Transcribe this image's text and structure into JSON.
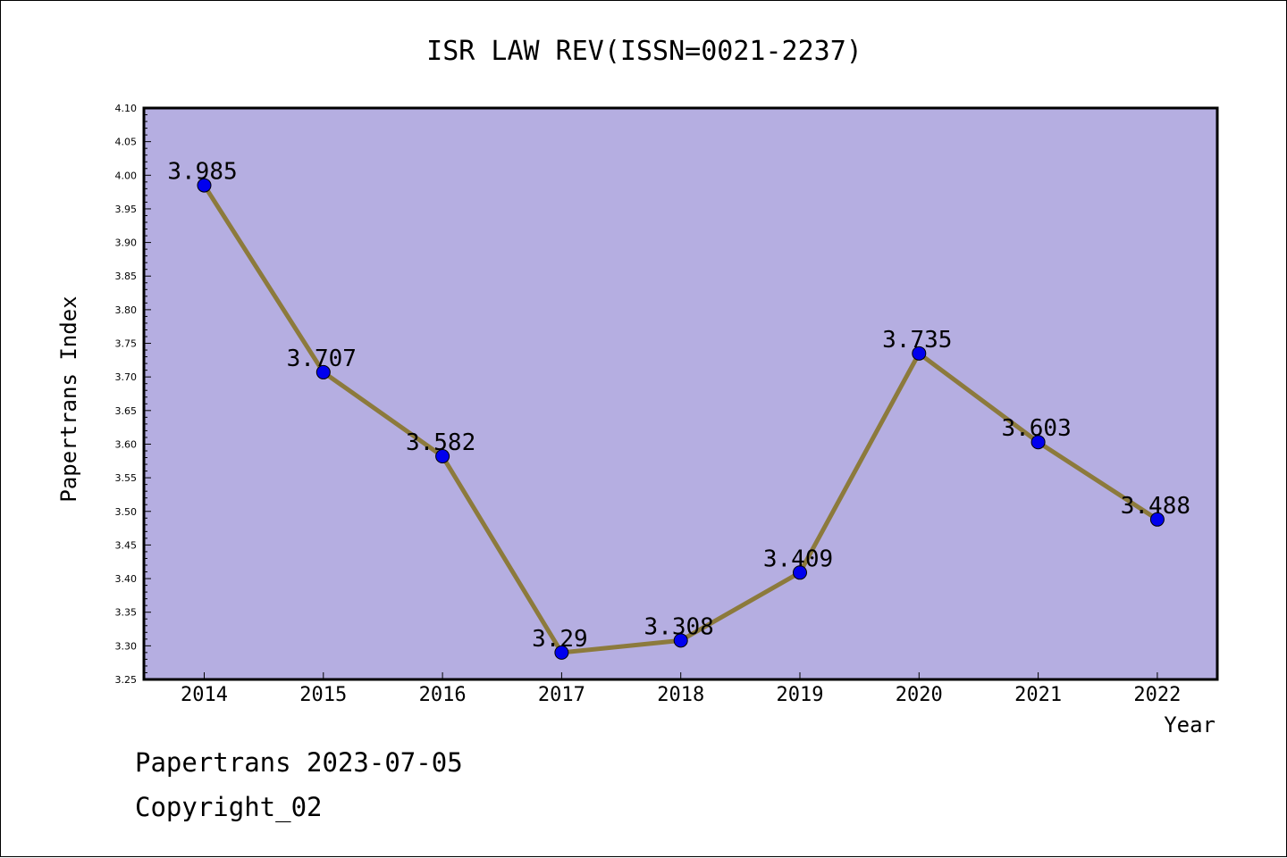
{
  "chart_data": {
    "type": "line",
    "title": "ISR LAW REV(ISSN=0021-2237)",
    "xlabel": "Year",
    "ylabel": "Papertrans Index",
    "categories": [
      "2014",
      "2015",
      "2016",
      "2017",
      "2018",
      "2019",
      "2020",
      "2021",
      "2022"
    ],
    "series": [
      {
        "values": [
          3.985,
          3.707,
          3.582,
          3.29,
          3.308,
          3.409,
          3.735,
          3.603,
          3.488
        ],
        "labels": [
          "3.985",
          "3.707",
          "3.582",
          "3.29",
          "3.308",
          "3.409",
          "3.735",
          "3.603",
          "3.488"
        ]
      }
    ],
    "ylim": [
      3.25,
      4.1
    ],
    "yticks": [
      "3.25",
      "3.30",
      "3.35",
      "3.40",
      "3.45",
      "3.50",
      "3.55",
      "3.60",
      "3.65",
      "3.70",
      "3.75",
      "3.80",
      "3.85",
      "3.90",
      "3.95",
      "4.00",
      "4.05",
      "4.10"
    ],
    "grid": false,
    "colors": {
      "plot_background": "#b5aee1",
      "line": "#8c7a3c",
      "marker": "#0000ee"
    }
  },
  "footer": {
    "line1": "Papertrans 2023-07-05",
    "line2": "Copyright_02"
  }
}
